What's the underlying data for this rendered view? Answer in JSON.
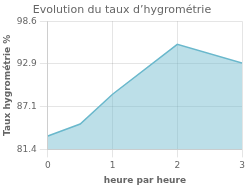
{
  "chart_data": {
    "type": "area",
    "title": "Evolution du taux d’hygrométrie",
    "xlabel": "heure par heure",
    "ylabel": "Taux hygrométrie %",
    "x": [
      0,
      0.5,
      1,
      2,
      3
    ],
    "values": [
      83.2,
      84.8,
      88.8,
      95.5,
      93.0
    ],
    "color": "#6ab8cc",
    "xlim": [
      0,
      3
    ],
    "xticks": [
      0,
      1,
      2,
      3
    ],
    "ylim": [
      81.4,
      98.6
    ],
    "yticks": [
      81.4,
      87.1,
      92.9,
      98.6
    ],
    "grid": true
  }
}
